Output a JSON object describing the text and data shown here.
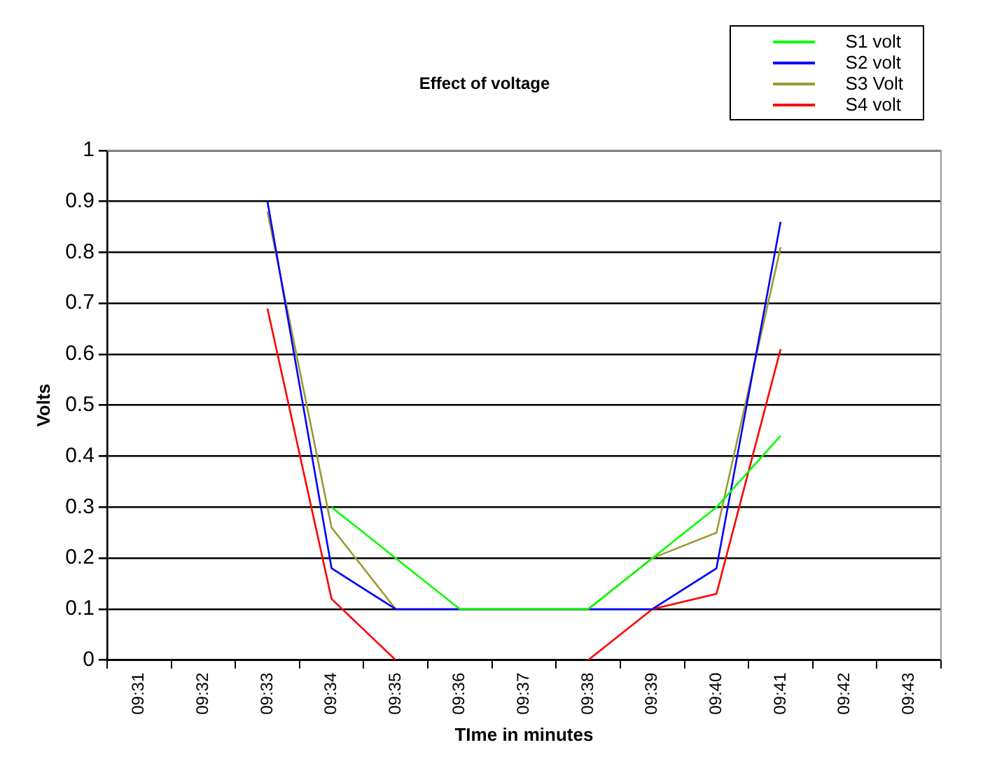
{
  "chart_data": {
    "type": "line",
    "title": "Effect of voltage",
    "xlabel": "TIme in minutes",
    "ylabel": "Volts",
    "categories": [
      "09:31",
      "09:32",
      "09:33",
      "09:34",
      "09:35",
      "09:36",
      "09:37",
      "09:38",
      "09:39",
      "09:40",
      "09:41",
      "09:42",
      "09:43"
    ],
    "series": [
      {
        "name": "S1 volt",
        "color": "#00ff00",
        "values": [
          null,
          null,
          null,
          0.3,
          0.2,
          0.1,
          0.1,
          0.1,
          0.2,
          0.3,
          0.44,
          null,
          null
        ]
      },
      {
        "name": "S2 volt",
        "color": "#0000ff",
        "values": [
          null,
          null,
          0.9,
          0.18,
          0.1,
          0.1,
          0.1,
          0.1,
          0.1,
          0.18,
          0.86,
          null,
          null
        ]
      },
      {
        "name": "S3 Volt",
        "color": "#999933",
        "values": [
          null,
          null,
          0.88,
          0.26,
          0.1,
          0.1,
          0.1,
          0.1,
          0.2,
          0.25,
          0.81,
          null,
          null
        ]
      },
      {
        "name": "S4 volt",
        "color": "#ff0000",
        "values": [
          null,
          null,
          0.69,
          0.12,
          0,
          null,
          null,
          0,
          0.1,
          0.13,
          0.61,
          null,
          null
        ]
      }
    ],
    "ylim": [
      0,
      1
    ],
    "yticks": [
      0,
      0.1,
      0.2,
      0.3,
      0.4,
      0.5,
      0.6,
      0.7,
      0.8,
      0.9,
      1
    ],
    "grid": "y",
    "legend": "top right",
    "marker": "none",
    "line_style": "solid"
  }
}
